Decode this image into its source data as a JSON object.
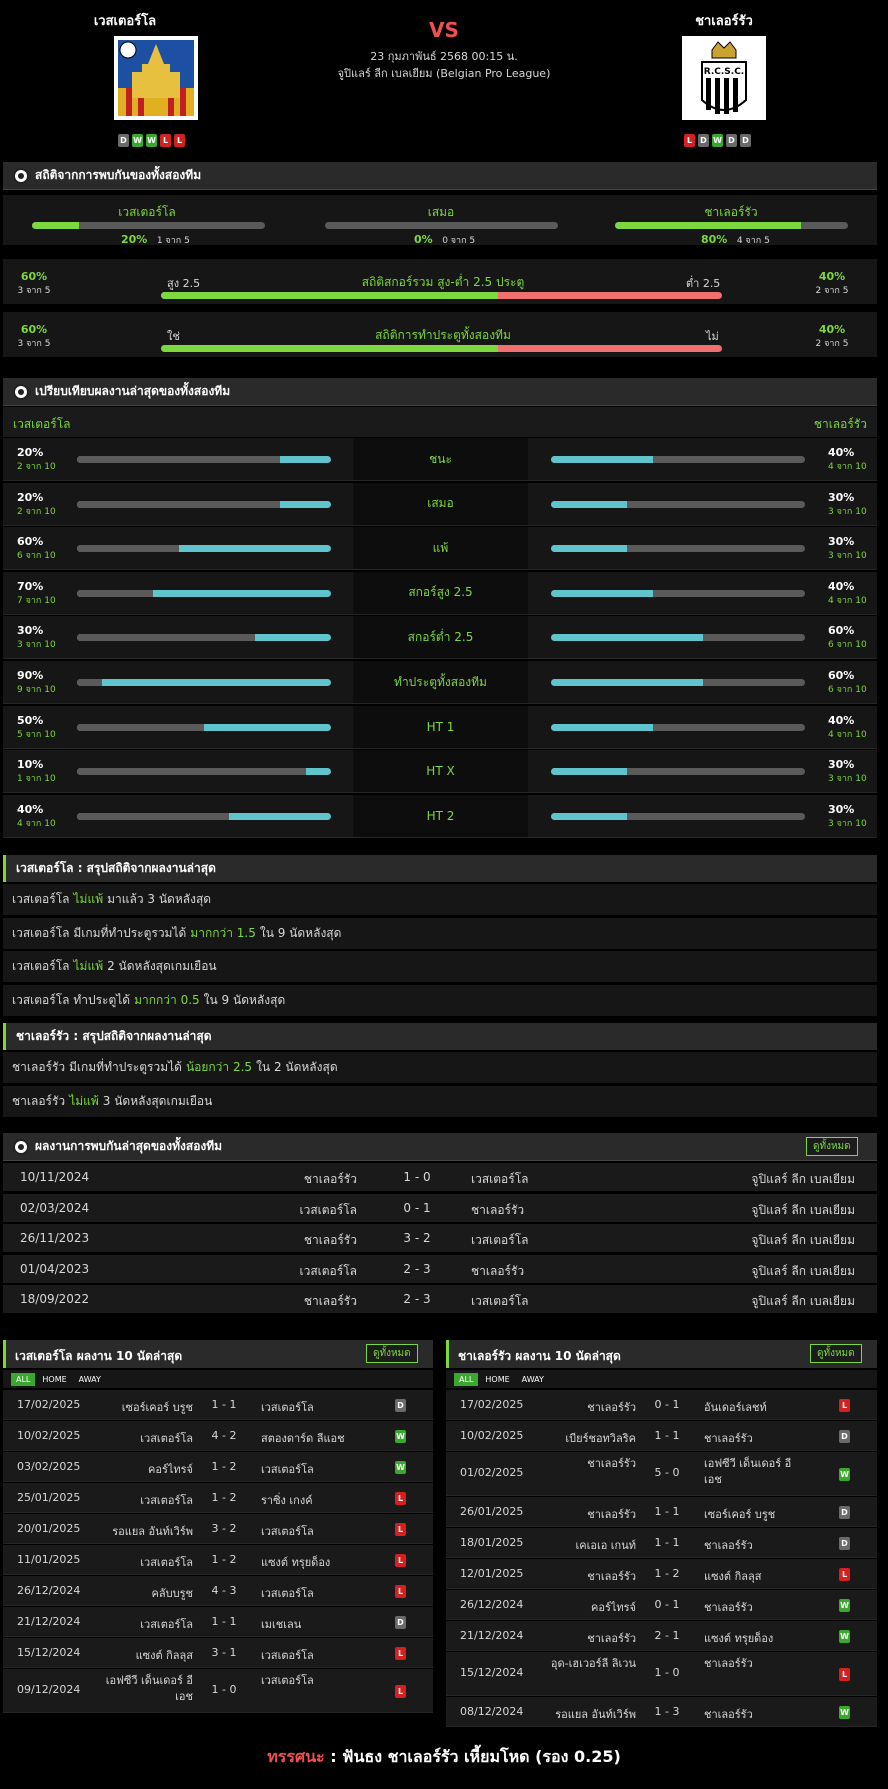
{
  "header": {
    "home": "เวสเตอร์โล",
    "away": "ชาเลอร์รัว",
    "vs": "VS",
    "datetime": "23 กุมภาพันธ์ 2568 00:15 น.",
    "league": "จูปิแลร์ ลีก เบลเยียม (Belgian Pro League)",
    "home_form": [
      "D",
      "W",
      "W",
      "L",
      "L"
    ],
    "away_form": [
      "L",
      "D",
      "W",
      "D",
      "D"
    ],
    "away_crest_text": "R.C.S.C."
  },
  "h2h_stats": {
    "title": "สถิติจากการพบกันของทั้งสองทีม",
    "home_label": "เวสเตอร์โล",
    "draw_label": "เสมอ",
    "away_label": "ชาเลอร์รัว",
    "home_pct": "20%",
    "home_sub": "1 จาก 5",
    "home_val": 0.2,
    "draw_pct": "0%",
    "draw_sub": "0 จาก 5",
    "draw_val": 0,
    "away_pct": "80%",
    "away_sub": "4 จาก 5",
    "away_val": 0.8,
    "over_title": "สถิติสกอร์รวม สูง-ต่ำ 2.5 ประตู",
    "over_left_label": "สูง 2.5",
    "over_right_label": "ต่ำ 2.5",
    "over_l_pct": "60%",
    "over_l_sub": "3 จาก 5",
    "over_r_pct": "40%",
    "over_r_sub": "2 จาก 5",
    "over_val": 0.6,
    "btts_title": "สถิติการทำประตูทั้งสองทีม",
    "btts_left_label": "ใช่",
    "btts_right_label": "ไม่",
    "btts_l_pct": "60%",
    "btts_l_sub": "3 จาก 5",
    "btts_r_pct": "40%",
    "btts_r_sub": "2 จาก 5",
    "btts_val": 0.6
  },
  "compare": {
    "title": "เปรียบเทียบผลงานล่าสุดของทั้งสองทีม",
    "home": "เวสเตอร์โล",
    "away": "ชาเลอร์รัว",
    "rows": [
      {
        "label": "ชนะ",
        "l_pct": "20%",
        "l_sub": "2 จาก 10",
        "l_val": 0.2,
        "r_pct": "40%",
        "r_sub": "4 จาก 10",
        "r_val": 0.4
      },
      {
        "label": "เสมอ",
        "l_pct": "20%",
        "l_sub": "2 จาก 10",
        "l_val": 0.2,
        "r_pct": "30%",
        "r_sub": "3 จาก 10",
        "r_val": 0.3
      },
      {
        "label": "แพ้",
        "l_pct": "60%",
        "l_sub": "6 จาก 10",
        "l_val": 0.6,
        "r_pct": "30%",
        "r_sub": "3 จาก 10",
        "r_val": 0.3
      },
      {
        "label": "สกอร์สูง 2.5",
        "l_pct": "70%",
        "l_sub": "7 จาก 10",
        "l_val": 0.7,
        "r_pct": "40%",
        "r_sub": "4 จาก 10",
        "r_val": 0.4
      },
      {
        "label": "สกอร์ต่ำ 2.5",
        "l_pct": "30%",
        "l_sub": "3 จาก 10",
        "l_val": 0.3,
        "r_pct": "60%",
        "r_sub": "6 จาก 10",
        "r_val": 0.6
      },
      {
        "label": "ทำประตูทั้งสองทีม",
        "l_pct": "90%",
        "l_sub": "9 จาก 10",
        "l_val": 0.9,
        "r_pct": "60%",
        "r_sub": "6 จาก 10",
        "r_val": 0.6
      },
      {
        "label": "HT 1",
        "l_pct": "50%",
        "l_sub": "5 จาก 10",
        "l_val": 0.5,
        "r_pct": "40%",
        "r_sub": "4 จาก 10",
        "r_val": 0.4
      },
      {
        "label": "HT X",
        "l_pct": "10%",
        "l_sub": "1 จาก 10",
        "l_val": 0.1,
        "r_pct": "30%",
        "r_sub": "3 จาก 10",
        "r_val": 0.3
      },
      {
        "label": "HT 2",
        "l_pct": "40%",
        "l_sub": "4 จาก 10",
        "l_val": 0.4,
        "r_pct": "30%",
        "r_sub": "3 จาก 10",
        "r_val": 0.3
      }
    ]
  },
  "home_summary": {
    "title": "เวสเตอร์โล : สรุปสถิติจากผลงานล่าสุด",
    "rows": [
      [
        "เวสเตอร์โล ",
        "ไม่แพ้",
        " มาแล้ว 3 นัดหลังสุด"
      ],
      [
        "เวสเตอร์โล มีเกมที่ทำประตูรวมได้ ",
        "มากกว่า 1.5",
        " ใน 9 นัดหลังสุด"
      ],
      [
        "เวสเตอร์โล ",
        "ไม่แพ้",
        " 2 นัดหลังสุดเกมเยือน"
      ],
      [
        "เวสเตอร์โล ทำประตูได้ ",
        "มากกว่า 0.5",
        " ใน 9 นัดหลังสุด"
      ]
    ]
  },
  "away_summary": {
    "title": "ชาเลอร์รัว : สรุปสถิติจากผลงานล่าสุด",
    "rows": [
      [
        "ชาเลอร์รัว มีเกมที่ทำประตูรวมได้ ",
        "น้อยกว่า 2.5",
        " ใน 2 นัดหลังสุด"
      ],
      [
        "ชาเลอร์รัว ",
        "ไม่แพ้",
        " 3 นัดหลังสุดเกมเยือน"
      ]
    ]
  },
  "h2h_results": {
    "title": "ผลงานการพบกันล่าสุดของทั้งสองทีม",
    "view_all": "ดูทั้งหมด",
    "rows": [
      [
        "10/11/2024",
        "ชาเลอร์รัว",
        "1 - 0",
        "เวสเตอร์โล",
        "จูปิแลร์ ลีก เบลเยียม"
      ],
      [
        "02/03/2024",
        "เวสเตอร์โล",
        "0 - 1",
        "ชาเลอร์รัว",
        "จูปิแลร์ ลีก เบลเยียม"
      ],
      [
        "26/11/2023",
        "ชาเลอร์รัว",
        "3 - 2",
        "เวสเตอร์โล",
        "จูปิแลร์ ลีก เบลเยียม"
      ],
      [
        "01/04/2023",
        "เวสเตอร์โล",
        "2 - 3",
        "ชาเลอร์รัว",
        "จูปิแลร์ ลีก เบลเยียม"
      ],
      [
        "18/09/2022",
        "ชาเลอร์รัว",
        "2 - 3",
        "เวสเตอร์โล",
        "จูปิแลร์ ลีก เบลเยียม"
      ]
    ]
  },
  "home_last10": {
    "title": "เวสเตอร์โล ผลงาน 10 นัดล่าสุด",
    "view_all": "ดูทั้งหมด",
    "tabs": [
      "ALL",
      "HOME",
      "AWAY"
    ],
    "rows": [
      [
        "17/02/2025",
        "เซอร์เคอร์ บรูช",
        "1 - 1",
        "เวสเตอร์โล",
        "D"
      ],
      [
        "10/02/2025",
        "เวสเตอร์โล",
        "4 - 2",
        "สตองดาร์ด ลีแอช",
        "W"
      ],
      [
        "03/02/2025",
        "คอร์ไทรจ์",
        "1 - 2",
        "เวสเตอร์โล",
        "W"
      ],
      [
        "25/01/2025",
        "เวสเตอร์โล",
        "1 - 2",
        "ราซิ่ง เกงค์",
        "L"
      ],
      [
        "20/01/2025",
        "รอแยล อันท์เวิร์พ",
        "3 - 2",
        "เวสเตอร์โล",
        "L"
      ],
      [
        "11/01/2025",
        "เวสเตอร์โล",
        "1 - 2",
        "แซงต์ ทรุยด็อง",
        "L"
      ],
      [
        "26/12/2024",
        "คลับบรูช",
        "4 - 3",
        "เวสเตอร์โล",
        "L"
      ],
      [
        "21/12/2024",
        "เวสเตอร์โล",
        "1 - 1",
        "เมเชเลน",
        "D"
      ],
      [
        "15/12/2024",
        "แซงต์ กิลลุส",
        "3 - 1",
        "เวสเตอร์โล",
        "L"
      ],
      [
        "09/12/2024",
        "เอฟซีวี เด็นเดอร์ อี เอช",
        "1 - 0",
        "เวสเตอร์โล",
        "L"
      ]
    ]
  },
  "away_last10": {
    "title": "ชาเลอร์รัว ผลงาน 10 นัดล่าสุด",
    "view_all": "ดูทั้งหมด",
    "tabs": [
      "ALL",
      "HOME",
      "AWAY"
    ],
    "rows": [
      [
        "17/02/2025",
        "ชาเลอร์รัว",
        "0 - 1",
        "อันเดอร์เลชท์",
        "L"
      ],
      [
        "10/02/2025",
        "เบียร์ชอทวิลริค",
        "1 - 1",
        "ชาเลอร์รัว",
        "D"
      ],
      [
        "01/02/2025",
        "ชาเลอร์รัว",
        "5 - 0",
        "เอฟซีวี เด็นเดอร์ อี เอช",
        "W"
      ],
      [
        "26/01/2025",
        "ชาเลอร์รัว",
        "1 - 1",
        "เซอร์เคอร์ บรูช",
        "D"
      ],
      [
        "18/01/2025",
        "เคเอเอ เกนท์",
        "1 - 1",
        "ชาเลอร์รัว",
        "D"
      ],
      [
        "12/01/2025",
        "ชาเลอร์รัว",
        "1 - 2",
        "แซงต์ กิลลุส",
        "L"
      ],
      [
        "26/12/2024",
        "คอร์ไทรจ์",
        "0 - 1",
        "ชาเลอร์รัว",
        "W"
      ],
      [
        "21/12/2024",
        "ชาเลอร์รัว",
        "2 - 1",
        "แซงต์ ทรุยด็อง",
        "W"
      ],
      [
        "15/12/2024",
        "อุด-เฮเวอร์ลี ลิเวน",
        "1 - 0",
        "ชาเลอร์รัว",
        "L"
      ],
      [
        "08/12/2024",
        "รอแยล อันท์เวิร์พ",
        "1 - 3",
        "ชาเลอร์รัว",
        "W"
      ]
    ]
  },
  "prediction": {
    "label": "ทรรศนะ",
    "sep": " : ",
    "text": "ฟันธง ชาเลอร์รัว เหี้ยมโหด (รอง 0.25)"
  },
  "colors": {
    "accent": "#7cd83e",
    "bar_teal": "#5fc4cc",
    "bar_red": "#f07070",
    "win": "#3aa82e",
    "draw": "#6a6a6a",
    "loss": "#d32020"
  }
}
